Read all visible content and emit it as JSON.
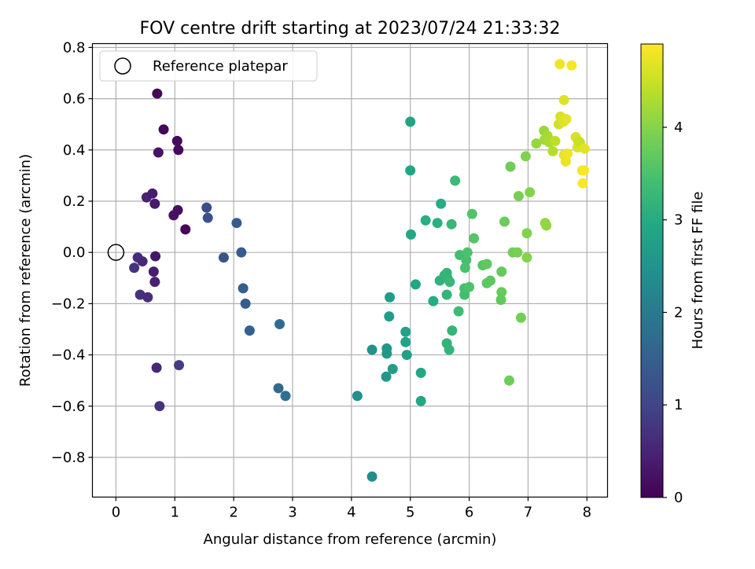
{
  "chart_data": {
    "type": "scatter",
    "title": "FOV centre drift starting at 2023/07/24 21:33:32",
    "xlabel": "Angular distance from reference (arcmin)",
    "ylabel": "Rotation from reference (arcmin)",
    "xlim": [
      -0.4,
      8.35
    ],
    "ylim": [
      -0.955,
      0.815
    ],
    "xticks": [
      0,
      1,
      2,
      3,
      4,
      5,
      6,
      7,
      8
    ],
    "xtick_labels": [
      "0",
      "1",
      "2",
      "3",
      "4",
      "5",
      "6",
      "7",
      "8"
    ],
    "yticks": [
      -0.8,
      -0.6,
      -0.4,
      -0.2,
      0.0,
      0.2,
      0.4,
      0.6,
      0.8
    ],
    "ytick_labels": [
      "−0.8",
      "−0.6",
      "−0.4",
      "−0.2",
      "0.0",
      "0.2",
      "0.4",
      "0.6",
      "0.8"
    ],
    "grid": true,
    "legend": {
      "position": "top-left",
      "entries": [
        {
          "label": "Reference platepar",
          "marker": "open-circle"
        }
      ]
    },
    "reference_point": {
      "x": 0,
      "y": 0
    },
    "colorbar": {
      "label": "Hours from first FF file",
      "colormap": "viridis",
      "range": [
        0,
        4.9
      ],
      "ticks": [
        0,
        1,
        2,
        3,
        4
      ],
      "tick_labels": [
        "0",
        "1",
        "2",
        "3",
        "4"
      ]
    },
    "series": [
      {
        "points": [
          {
            "x": 0.7,
            "y": 0.62,
            "t": 0.05
          },
          {
            "x": 0.81,
            "y": 0.48,
            "t": 0.1
          },
          {
            "x": 1.04,
            "y": 0.435,
            "t": 0.12
          },
          {
            "x": 1.06,
            "y": 0.4,
            "t": 0.14
          },
          {
            "x": 0.72,
            "y": 0.39,
            "t": 0.25
          },
          {
            "x": 0.52,
            "y": 0.215,
            "t": 0.45
          },
          {
            "x": 0.62,
            "y": 0.23,
            "t": 0.4
          },
          {
            "x": 0.66,
            "y": 0.19,
            "t": 0.35
          },
          {
            "x": 1.05,
            "y": 0.165,
            "t": 0.2
          },
          {
            "x": 0.98,
            "y": 0.145,
            "t": 0.22
          },
          {
            "x": 1.18,
            "y": 0.09,
            "t": 0.08
          },
          {
            "x": 0.67,
            "y": -0.015,
            "t": 0.3
          },
          {
            "x": 0.37,
            "y": -0.02,
            "t": 0.62
          },
          {
            "x": 0.45,
            "y": -0.035,
            "t": 0.55
          },
          {
            "x": 0.31,
            "y": -0.06,
            "t": 0.75
          },
          {
            "x": 0.64,
            "y": -0.075,
            "t": 0.4
          },
          {
            "x": 0.66,
            "y": -0.115,
            "t": 0.45
          },
          {
            "x": 0.41,
            "y": -0.165,
            "t": 0.7
          },
          {
            "x": 0.54,
            "y": -0.175,
            "t": 0.65
          },
          {
            "x": 0.69,
            "y": -0.45,
            "t": 0.55
          },
          {
            "x": 1.07,
            "y": -0.44,
            "t": 0.85
          },
          {
            "x": 0.74,
            "y": -0.6,
            "t": 0.7
          },
          {
            "x": 1.54,
            "y": 0.175,
            "t": 1.15
          },
          {
            "x": 1.56,
            "y": 0.135,
            "t": 1.2
          },
          {
            "x": 2.05,
            "y": 0.115,
            "t": 1.4
          },
          {
            "x": 2.13,
            "y": 0.0,
            "t": 1.4
          },
          {
            "x": 1.83,
            "y": -0.02,
            "t": 1.3
          },
          {
            "x": 2.16,
            "y": -0.14,
            "t": 1.45
          },
          {
            "x": 2.2,
            "y": -0.2,
            "t": 1.45
          },
          {
            "x": 2.27,
            "y": -0.305,
            "t": 1.5
          },
          {
            "x": 2.78,
            "y": -0.28,
            "t": 1.75
          },
          {
            "x": 2.76,
            "y": -0.53,
            "t": 1.7
          },
          {
            "x": 2.88,
            "y": -0.56,
            "t": 1.8
          },
          {
            "x": 4.1,
            "y": -0.56,
            "t": 2.45
          },
          {
            "x": 4.35,
            "y": -0.875,
            "t": 2.4
          },
          {
            "x": 4.35,
            "y": -0.38,
            "t": 2.5
          },
          {
            "x": 4.6,
            "y": -0.375,
            "t": 2.6
          },
          {
            "x": 4.6,
            "y": -0.395,
            "t": 2.62
          },
          {
            "x": 4.59,
            "y": -0.485,
            "t": 2.58
          },
          {
            "x": 4.7,
            "y": -0.455,
            "t": 2.72
          },
          {
            "x": 4.65,
            "y": -0.175,
            "t": 2.68
          },
          {
            "x": 4.64,
            "y": -0.25,
            "t": 2.7
          },
          {
            "x": 4.92,
            "y": -0.31,
            "t": 2.8
          },
          {
            "x": 4.92,
            "y": -0.35,
            "t": 2.82
          },
          {
            "x": 4.94,
            "y": -0.4,
            "t": 2.78
          },
          {
            "x": 5.0,
            "y": 0.51,
            "t": 2.85
          },
          {
            "x": 5.0,
            "y": 0.32,
            "t": 2.88
          },
          {
            "x": 5.01,
            "y": 0.07,
            "t": 2.95
          },
          {
            "x": 5.09,
            "y": -0.125,
            "t": 2.9
          },
          {
            "x": 5.18,
            "y": -0.47,
            "t": 2.92
          },
          {
            "x": 5.18,
            "y": -0.58,
            "t": 2.95
          },
          {
            "x": 5.26,
            "y": 0.125,
            "t": 3.05
          },
          {
            "x": 5.39,
            "y": -0.19,
            "t": 3.0
          },
          {
            "x": 5.46,
            "y": 0.115,
            "t": 3.1
          },
          {
            "x": 5.52,
            "y": 0.19,
            "t": 3.02
          },
          {
            "x": 5.5,
            "y": -0.11,
            "t": 3.15
          },
          {
            "x": 5.58,
            "y": -0.09,
            "t": 3.18
          },
          {
            "x": 5.62,
            "y": -0.08,
            "t": 3.2
          },
          {
            "x": 5.63,
            "y": -0.1,
            "t": 3.22
          },
          {
            "x": 5.67,
            "y": -0.115,
            "t": 3.25
          },
          {
            "x": 5.62,
            "y": -0.165,
            "t": 3.2
          },
          {
            "x": 5.62,
            "y": -0.355,
            "t": 3.18
          },
          {
            "x": 5.66,
            "y": -0.38,
            "t": 3.2
          },
          {
            "x": 5.71,
            "y": -0.305,
            "t": 3.22
          },
          {
            "x": 5.7,
            "y": 0.11,
            "t": 3.25
          },
          {
            "x": 5.76,
            "y": 0.28,
            "t": 3.3
          },
          {
            "x": 5.82,
            "y": -0.23,
            "t": 3.35
          },
          {
            "x": 5.84,
            "y": -0.01,
            "t": 3.4
          },
          {
            "x": 5.92,
            "y": -0.14,
            "t": 3.42
          },
          {
            "x": 5.92,
            "y": -0.165,
            "t": 3.4
          },
          {
            "x": 5.95,
            "y": -0.03,
            "t": 3.45
          },
          {
            "x": 5.93,
            "y": -0.06,
            "t": 3.48
          },
          {
            "x": 5.97,
            "y": 0.0,
            "t": 3.5
          },
          {
            "x": 6.0,
            "y": -0.135,
            "t": 3.52
          },
          {
            "x": 6.05,
            "y": 0.15,
            "t": 3.55
          },
          {
            "x": 6.08,
            "y": 0.055,
            "t": 3.58
          },
          {
            "x": 6.23,
            "y": -0.05,
            "t": 3.62
          },
          {
            "x": 6.3,
            "y": -0.12,
            "t": 3.65
          },
          {
            "x": 6.3,
            "y": -0.045,
            "t": 3.68
          },
          {
            "x": 6.36,
            "y": -0.11,
            "t": 3.66
          },
          {
            "x": 6.55,
            "y": -0.075,
            "t": 3.72
          },
          {
            "x": 6.55,
            "y": -0.155,
            "t": 3.74
          },
          {
            "x": 6.54,
            "y": -0.185,
            "t": 3.7
          },
          {
            "x": 6.6,
            "y": 0.12,
            "t": 3.78
          },
          {
            "x": 6.7,
            "y": 0.335,
            "t": 3.82
          },
          {
            "x": 6.68,
            "y": -0.5,
            "t": 3.8
          },
          {
            "x": 6.74,
            "y": 0.0,
            "t": 3.85
          },
          {
            "x": 6.82,
            "y": 0.0,
            "t": 3.88
          },
          {
            "x": 6.84,
            "y": 0.22,
            "t": 3.9
          },
          {
            "x": 6.88,
            "y": -0.255,
            "t": 3.86
          },
          {
            "x": 6.96,
            "y": 0.375,
            "t": 3.95
          },
          {
            "x": 6.98,
            "y": 0.075,
            "t": 3.98
          },
          {
            "x": 6.98,
            "y": -0.02,
            "t": 4.0
          },
          {
            "x": 7.03,
            "y": 0.235,
            "t": 3.98
          },
          {
            "x": 7.14,
            "y": 0.425,
            "t": 4.1
          },
          {
            "x": 7.27,
            "y": 0.475,
            "t": 4.15
          },
          {
            "x": 7.29,
            "y": 0.115,
            "t": 4.12
          },
          {
            "x": 7.31,
            "y": 0.105,
            "t": 4.1
          },
          {
            "x": 7.28,
            "y": 0.44,
            "t": 4.2
          },
          {
            "x": 7.33,
            "y": 0.455,
            "t": 4.25
          },
          {
            "x": 7.36,
            "y": 0.43,
            "t": 4.28
          },
          {
            "x": 7.42,
            "y": 0.395,
            "t": 4.35
          },
          {
            "x": 7.46,
            "y": 0.435,
            "t": 4.4
          },
          {
            "x": 7.52,
            "y": 0.5,
            "t": 4.55
          },
          {
            "x": 7.55,
            "y": 0.53,
            "t": 4.62
          },
          {
            "x": 7.54,
            "y": 0.735,
            "t": 4.8
          },
          {
            "x": 7.61,
            "y": 0.595,
            "t": 4.65
          },
          {
            "x": 7.6,
            "y": 0.51,
            "t": 4.68
          },
          {
            "x": 7.65,
            "y": 0.52,
            "t": 4.7
          },
          {
            "x": 7.61,
            "y": 0.38,
            "t": 4.72
          },
          {
            "x": 7.64,
            "y": 0.355,
            "t": 4.75
          },
          {
            "x": 7.67,
            "y": 0.385,
            "t": 4.78
          },
          {
            "x": 7.74,
            "y": 0.73,
            "t": 4.85
          },
          {
            "x": 7.81,
            "y": 0.45,
            "t": 4.6
          },
          {
            "x": 7.84,
            "y": 0.41,
            "t": 4.65
          },
          {
            "x": 7.85,
            "y": 0.435,
            "t": 4.55
          },
          {
            "x": 7.88,
            "y": 0.43,
            "t": 4.5
          },
          {
            "x": 7.92,
            "y": 0.32,
            "t": 4.82
          },
          {
            "x": 7.95,
            "y": 0.32,
            "t": 4.86
          },
          {
            "x": 7.96,
            "y": 0.405,
            "t": 4.7
          },
          {
            "x": 7.93,
            "y": 0.27,
            "t": 4.88
          }
        ]
      }
    ]
  }
}
